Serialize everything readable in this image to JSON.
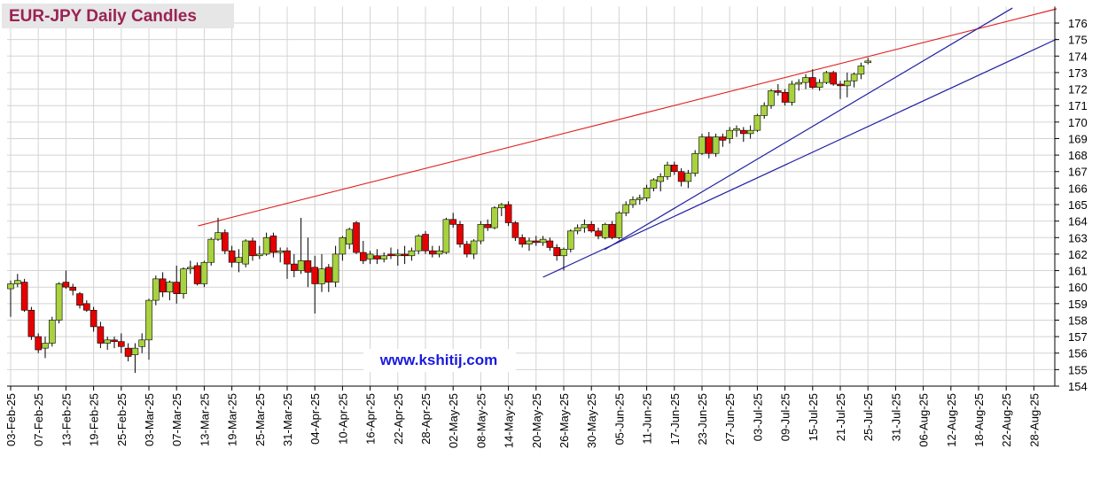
{
  "chart_data": {
    "type": "candlestick",
    "title": "EUR-JPY Daily  Candles",
    "annotation": "www.kshitij.com",
    "categories": [
      "03-Feb-25",
      null,
      null,
      null,
      "07-Feb-25",
      null,
      null,
      null,
      "13-Feb-25",
      null,
      null,
      null,
      "19-Feb-25",
      null,
      null,
      null,
      "25-Feb-25",
      null,
      null,
      null,
      "03-Mar-25",
      null,
      null,
      null,
      "07-Mar-25",
      null,
      null,
      null,
      "13-Mar-25",
      null,
      null,
      null,
      "19-Mar-25",
      null,
      null,
      null,
      "25-Mar-25",
      null,
      null,
      null,
      "31-Mar-25",
      null,
      null,
      null,
      "04-Apr-25",
      null,
      null,
      null,
      "10-Apr-25",
      null,
      null,
      null,
      "16-Apr-25",
      null,
      null,
      null,
      "22-Apr-25",
      null,
      null,
      null,
      "28-Apr-25",
      null,
      null,
      null,
      "02-May-25",
      null,
      null,
      null,
      "08-May-25",
      null,
      null,
      null,
      "14-May-25",
      null,
      null,
      null,
      "20-May-25",
      null,
      null,
      null,
      "26-May-25",
      null,
      null,
      null,
      "30-May-25",
      null,
      null,
      null,
      "05-Jun-25",
      null,
      null,
      null,
      "11-Jun-25",
      null,
      null,
      null,
      "17-Jun-25",
      null,
      null,
      null,
      "23-Jun-25",
      null,
      null,
      null,
      "27-Jun-25",
      null,
      null,
      null,
      "03-Jul-25",
      null,
      null,
      null,
      "09-Jul-25",
      null,
      null,
      null,
      "15-Jul-25",
      null,
      null,
      null,
      "21-Jul-25",
      null,
      null,
      null,
      "25-Jul-25",
      null,
      null,
      null,
      "31-Jul-25",
      null,
      null,
      null,
      "06-Aug-25",
      null,
      null,
      null,
      "12-Aug-25",
      null,
      null,
      null,
      "18-Aug-25",
      null,
      null,
      null,
      "22-Aug-25",
      null,
      null,
      null,
      "28-Aug-25"
    ],
    "open": [
      159.9,
      160.2,
      160.3,
      158.6,
      157.0,
      156.3,
      156.6,
      158.0,
      160.3,
      160.0,
      159.6,
      159.0,
      158.6,
      157.6,
      156.6,
      156.8,
      156.7,
      156.3,
      155.9,
      156.4,
      156.8,
      159.2,
      160.5,
      159.7,
      160.3,
      159.6,
      161.1,
      161.3,
      160.2,
      161.5,
      162.9,
      163.3,
      162.2,
      161.5,
      161.4,
      162.8,
      161.9,
      162.0,
      163.1,
      162.1,
      162.2,
      161.4,
      161.0,
      161.6,
      161.2,
      160.2,
      161.2,
      160.3,
      162.0,
      162.6,
      163.9,
      162.1,
      161.7,
      161.9,
      161.7,
      162.0,
      161.9,
      162.0,
      161.9,
      162.2,
      163.2,
      162.2,
      162.0,
      162.1,
      164.1,
      163.8,
      162.6,
      162.0,
      162.8,
      163.8,
      163.6,
      164.8,
      165.0,
      163.9,
      163.0,
      162.6,
      162.8,
      162.7,
      162.8,
      162.4,
      161.9,
      162.3,
      163.4,
      163.6,
      163.8,
      163.4,
      163.0,
      163.8,
      163.0,
      164.5,
      165.0,
      165.3,
      165.4,
      166.0,
      166.4,
      166.7,
      167.4,
      167.0,
      166.4,
      166.9,
      168.1,
      169.1,
      168.1,
      169.1,
      169.0,
      169.5,
      169.5,
      169.3,
      169.5,
      170.4,
      171.0,
      171.9,
      171.8,
      171.2,
      172.3,
      172.4,
      172.7,
      172.1,
      172.4,
      173.0,
      172.3,
      172.2,
      172.5,
      172.9,
      173.6,
      null,
      null,
      null,
      null,
      null,
      null,
      null,
      null,
      null,
      null,
      null,
      null,
      null,
      null,
      null,
      null,
      null,
      null,
      null,
      null,
      null,
      null,
      null,
      null
    ],
    "high": [
      160.4,
      160.8,
      160.5,
      158.8,
      157.2,
      157.0,
      158.2,
      160.3,
      161.0,
      160.2,
      159.7,
      159.2,
      158.8,
      157.9,
      157.0,
      157.0,
      157.2,
      156.6,
      156.6,
      157.2,
      159.3,
      160.7,
      160.9,
      160.4,
      161.3,
      161.2,
      161.6,
      161.5,
      161.6,
      163.0,
      164.2,
      163.5,
      162.5,
      162.3,
      162.9,
      163.0,
      162.5,
      163.3,
      163.3,
      162.4,
      162.4,
      162.0,
      164.2,
      163.0,
      161.9,
      162.0,
      161.4,
      162.5,
      163.1,
      163.6,
      164.0,
      162.8,
      162.2,
      162.3,
      162.1,
      162.4,
      162.3,
      162.5,
      162.4,
      163.2,
      163.4,
      162.5,
      162.5,
      164.2,
      164.5,
      164.0,
      162.8,
      162.9,
      164.0,
      164.1,
      164.9,
      165.1,
      165.2,
      164.0,
      163.2,
      163.0,
      163.1,
      163.1,
      163.0,
      162.6,
      162.4,
      163.5,
      163.8,
      164.1,
      164.0,
      163.6,
      163.9,
      164.0,
      164.6,
      165.2,
      165.5,
      165.6,
      166.2,
      166.6,
      166.9,
      167.6,
      167.6,
      167.2,
      167.1,
      168.3,
      169.3,
      169.4,
      169.3,
      169.3,
      169.7,
      169.8,
      169.7,
      169.8,
      170.5,
      171.2,
      172.0,
      172.3,
      172.0,
      172.5,
      172.6,
      172.9,
      173.2,
      172.6,
      173.1,
      173.1,
      172.5,
      173.0,
      173.0,
      173.6,
      173.9,
      null,
      null,
      null,
      null,
      null,
      null,
      null,
      null,
      null,
      null,
      null,
      null,
      null,
      null,
      null,
      null,
      null,
      null,
      null,
      null,
      null,
      null,
      null,
      null
    ],
    "low": [
      158.2,
      160.0,
      158.5,
      156.8,
      156.0,
      155.7,
      156.4,
      157.8,
      159.9,
      159.5,
      158.7,
      158.5,
      157.3,
      156.3,
      156.2,
      156.3,
      156.0,
      155.5,
      154.8,
      156.0,
      155.6,
      158.9,
      159.4,
      159.2,
      159.0,
      159.3,
      160.8,
      160.1,
      160.0,
      161.3,
      162.8,
      162.0,
      161.2,
      160.9,
      161.2,
      161.6,
      161.7,
      161.9,
      161.8,
      161.5,
      160.5,
      160.6,
      160.8,
      160.0,
      158.4,
      159.7,
      159.7,
      160.0,
      161.6,
      162.3,
      162.0,
      161.4,
      161.4,
      161.4,
      161.5,
      161.7,
      161.3,
      161.4,
      161.6,
      162.0,
      162.0,
      161.8,
      161.8,
      162.0,
      163.6,
      162.4,
      161.8,
      161.7,
      162.6,
      163.4,
      163.5,
      164.3,
      163.7,
      162.8,
      162.4,
      162.2,
      162.5,
      162.5,
      162.2,
      161.6,
      161.0,
      162.1,
      163.2,
      163.3,
      163.3,
      162.9,
      162.9,
      162.9,
      162.9,
      164.3,
      164.8,
      165.0,
      165.2,
      165.8,
      165.8,
      166.5,
      166.8,
      166.1,
      166.0,
      166.7,
      168.0,
      167.8,
      167.9,
      168.5,
      168.7,
      169.1,
      168.8,
      169.0,
      169.4,
      170.2,
      170.8,
      171.6,
      171.0,
      171.0,
      171.9,
      172.0,
      172.0,
      171.9,
      172.3,
      172.2,
      171.4,
      171.5,
      172.1,
      172.6,
      173.5,
      null,
      null,
      null,
      null,
      null,
      null,
      null,
      null,
      null,
      null,
      null,
      null,
      null,
      null,
      null,
      null,
      null,
      null,
      null,
      null,
      null,
      null,
      null,
      null
    ],
    "close": [
      160.2,
      160.4,
      158.6,
      157.0,
      156.2,
      156.6,
      158.0,
      160.2,
      160.0,
      159.8,
      158.9,
      158.6,
      157.6,
      156.6,
      156.8,
      156.7,
      156.4,
      155.8,
      156.3,
      156.8,
      159.2,
      160.5,
      159.7,
      160.3,
      159.6,
      161.1,
      161.2,
      160.2,
      161.5,
      162.9,
      163.3,
      162.2,
      161.5,
      161.8,
      162.8,
      161.9,
      162.0,
      163.0,
      162.1,
      162.2,
      161.4,
      161.0,
      161.6,
      160.9,
      160.2,
      161.1,
      160.3,
      162.0,
      163.0,
      163.5,
      162.1,
      161.6,
      162.0,
      161.7,
      161.9,
      161.9,
      162.0,
      161.9,
      162.2,
      163.1,
      162.2,
      162.0,
      162.2,
      164.1,
      163.8,
      162.6,
      162.0,
      162.8,
      163.8,
      163.6,
      164.8,
      165.0,
      163.9,
      163.0,
      162.6,
      162.8,
      162.7,
      162.9,
      162.4,
      161.9,
      162.3,
      163.4,
      163.6,
      163.8,
      163.4,
      163.1,
      163.8,
      163.0,
      164.5,
      165.0,
      165.3,
      165.4,
      166.0,
      166.5,
      166.7,
      167.4,
      167.0,
      166.4,
      166.9,
      168.1,
      169.1,
      168.1,
      169.1,
      168.9,
      169.5,
      169.6,
      169.3,
      169.5,
      170.4,
      171.0,
      171.9,
      171.8,
      171.2,
      172.3,
      172.4,
      172.7,
      172.1,
      172.4,
      173.0,
      172.3,
      172.2,
      172.5,
      172.9,
      173.4,
      173.7,
      null,
      null,
      null,
      null,
      null,
      null,
      null,
      null,
      null,
      null,
      null,
      null,
      null,
      null,
      null,
      null,
      null,
      null,
      null,
      null,
      null,
      null,
      null,
      null
    ],
    "up_color": "#a9d23f",
    "down_color": "#e60000",
    "ylim": [
      154,
      177
    ],
    "yticks": [
      154,
      155,
      156,
      157,
      158,
      159,
      160,
      161,
      162,
      163,
      164,
      165,
      166,
      167,
      168,
      169,
      170,
      171,
      172,
      173,
      174,
      175,
      176
    ],
    "grid": true,
    "trendlines": [
      {
        "color": "#e02020",
        "x": [
          27.1,
          151.3
        ],
        "y": [
          163.71,
          176.86
        ]
      },
      {
        "color": "#2020a0",
        "x": [
          85.9,
          144.9
        ],
        "y": [
          162.27,
          176.91
        ]
      },
      {
        "color": "#2020a0",
        "x": [
          77.0,
          151.3
        ],
        "y": [
          160.6,
          175.03
        ]
      }
    ]
  }
}
